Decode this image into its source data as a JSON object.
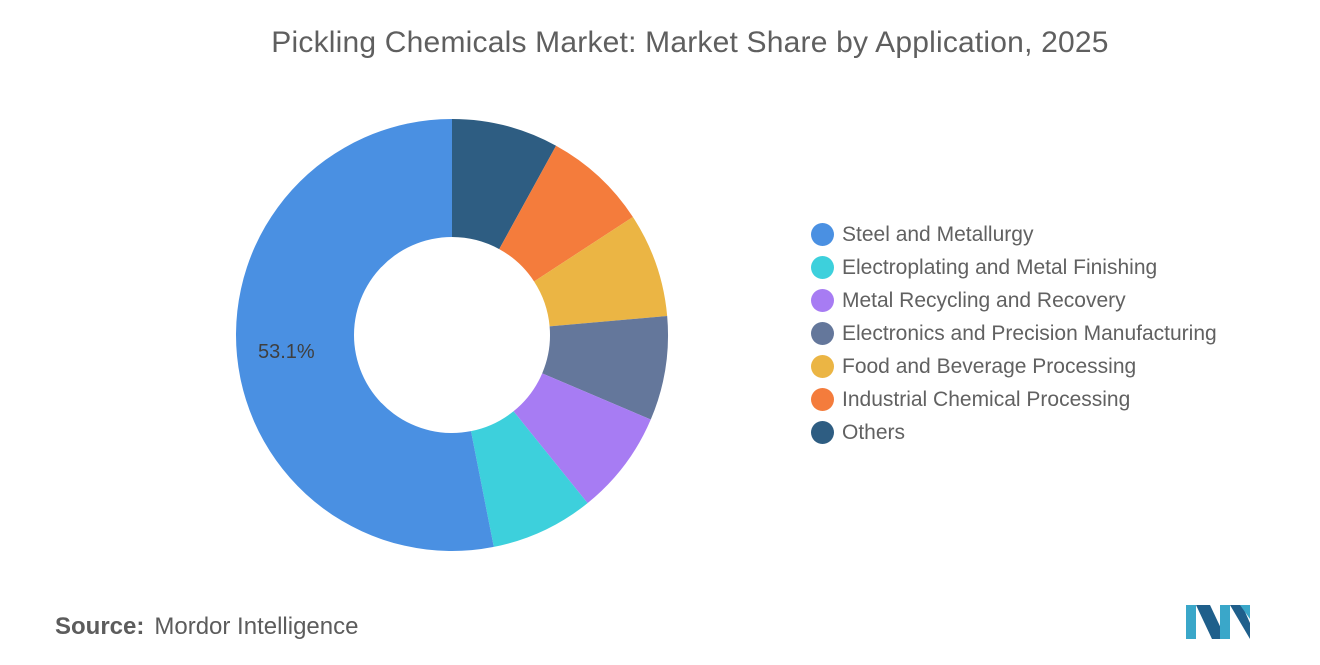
{
  "title": "Pickling Chemicals Market: Market Share by Application, 2025",
  "source": {
    "label": "Source:",
    "value": "Mordor Intelligence"
  },
  "logo_icon": "mordor-intelligence-logo-icon",
  "chart_data": {
    "type": "pie",
    "variant": "donut",
    "title": "Pickling Chemicals Market: Market Share by Application, 2025",
    "legend_position": "right",
    "start": "top, clockwise",
    "slices": [
      {
        "name": "Others",
        "value": 8.0,
        "color": "#2e5d82",
        "label": ""
      },
      {
        "name": "Industrial Chemical Processing",
        "value": 7.8,
        "color": "#f47c3c",
        "label": ""
      },
      {
        "name": "Food and Beverage Processing",
        "value": 7.8,
        "color": "#ebb544",
        "label": ""
      },
      {
        "name": "Electronics and Precision Manufacturing",
        "value": 7.8,
        "color": "#64779b",
        "label": ""
      },
      {
        "name": "Metal Recycling and Recovery",
        "value": 7.8,
        "color": "#a77cf3",
        "label": ""
      },
      {
        "name": "Electroplating and Metal Finishing",
        "value": 7.7,
        "color": "#3dd0dc",
        "label": ""
      },
      {
        "name": "Steel and Metallurgy",
        "value": 53.1,
        "color": "#4a90e2",
        "label": "53.1%"
      }
    ],
    "legend": [
      {
        "name": "Steel and Metallurgy",
        "color": "#4a90e2"
      },
      {
        "name": "Electroplating and Metal Finishing",
        "color": "#3dd0dc"
      },
      {
        "name": "Metal Recycling and Recovery",
        "color": "#a77cf3"
      },
      {
        "name": "Electronics and Precision Manufacturing",
        "color": "#64779b"
      },
      {
        "name": "Food and Beverage Processing",
        "color": "#ebb544"
      },
      {
        "name": "Industrial Chemical Processing",
        "color": "#f47c3c"
      },
      {
        "name": "Others",
        "color": "#2e5d82"
      }
    ]
  }
}
